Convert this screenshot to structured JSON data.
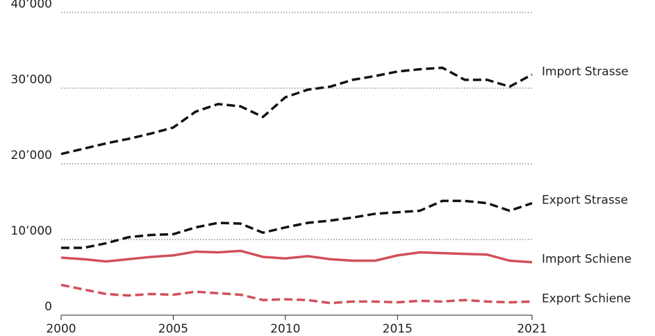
{
  "chart_data": {
    "type": "line",
    "x": [
      2000,
      2001,
      2002,
      2003,
      2004,
      2005,
      2006,
      2007,
      2008,
      2009,
      2010,
      2011,
      2012,
      2013,
      2014,
      2015,
      2016,
      2017,
      2018,
      2019,
      2020,
      2021
    ],
    "xlim": [
      2000,
      2021
    ],
    "xticks": [
      2000,
      2005,
      2010,
      2015,
      2021
    ],
    "ylim": [
      0,
      40000
    ],
    "yticks": [
      0,
      {
        "value": 10000,
        "label": "10’000"
      },
      {
        "value": 20000,
        "label": "20’000"
      },
      {
        "value": 30000,
        "label": "30’000"
      },
      {
        "value": 40000,
        "label": "40’000"
      }
    ],
    "grid": true,
    "series": [
      {
        "name": "Import Strasse",
        "color": "#111111",
        "dashed": true,
        "values": [
          21300,
          22000,
          22700,
          23300,
          24000,
          24800,
          26900,
          27900,
          27600,
          26200,
          28800,
          29800,
          30200,
          31100,
          31600,
          32200,
          32500,
          32700,
          31100,
          31100,
          30200,
          31800
        ]
      },
      {
        "name": "Export Strasse",
        "color": "#111111",
        "dashed": true,
        "values": [
          8900,
          8900,
          9500,
          10300,
          10600,
          10700,
          11600,
          12200,
          12100,
          10900,
          11600,
          12200,
          12500,
          12900,
          13400,
          13600,
          13800,
          15100,
          15100,
          14800,
          13800,
          14800
        ]
      },
      {
        "name": "Import Schiene",
        "color": "#d0505a",
        "dashed": false,
        "values": [
          7600,
          7400,
          7100,
          7400,
          7700,
          7900,
          8400,
          8300,
          8500,
          7700,
          7500,
          7800,
          7400,
          7200,
          7200,
          7900,
          8300,
          8200,
          8100,
          8000,
          7200,
          7000
        ]
      },
      {
        "name": "Export Schiene",
        "color": "#d0505a",
        "dashed": true,
        "values": [
          4000,
          3400,
          2800,
          2600,
          2800,
          2700,
          3100,
          2900,
          2700,
          2000,
          2100,
          2000,
          1600,
          1800,
          1800,
          1700,
          1900,
          1800,
          2000,
          1800,
          1700,
          1800
        ]
      }
    ]
  }
}
